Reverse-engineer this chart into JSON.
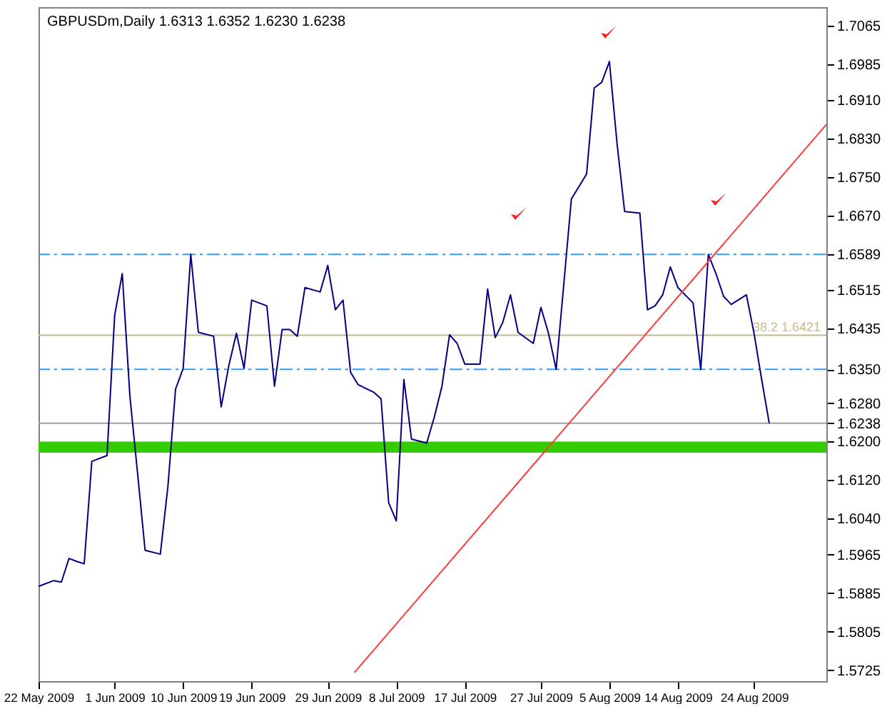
{
  "chart_data": {
    "type": "line",
    "title": "GBPUSDm,Daily  1.6313 1.6352 1.6230 1.6238",
    "xlim": [
      "2009-05-22",
      "2009-09-02T12:00"
    ],
    "ylim": [
      1.5702,
      1.7103
    ],
    "xticks": [
      {
        "value": "2009-05-22",
        "label": "22 May 2009"
      },
      {
        "value": "2009-06-01",
        "label": "1 Jun 2009"
      },
      {
        "value": "2009-06-10",
        "label": "10 Jun 2009"
      },
      {
        "value": "2009-06-19",
        "label": "19 Jun 2009"
      },
      {
        "value": "2009-06-29",
        "label": "29 Jun 2009"
      },
      {
        "value": "2009-07-08",
        "label": "8 Jul 2009"
      },
      {
        "value": "2009-07-17",
        "label": "17 Jul 2009"
      },
      {
        "value": "2009-07-27",
        "label": "27 Jul 2009"
      },
      {
        "value": "2009-08-05",
        "label": "5 Aug 2009"
      },
      {
        "value": "2009-08-14",
        "label": "14 Aug 2009"
      },
      {
        "value": "2009-08-24",
        "label": "24 Aug 2009"
      }
    ],
    "yticks": [
      1.7065,
      1.6985,
      {
        "value": 1.691,
        "label": "1.6910"
      },
      {
        "value": 1.683,
        "label": "1.6830"
      },
      {
        "value": 1.675,
        "label": "1.6750"
      },
      {
        "value": 1.667,
        "label": "1.6670"
      },
      1.6589,
      1.6515,
      1.6435,
      {
        "value": 1.635,
        "label": "1.6350"
      },
      {
        "value": 1.628,
        "label": "1.6280"
      },
      1.6238,
      {
        "value": 1.62,
        "label": "1.6200"
      },
      {
        "value": 1.612,
        "label": "1.6120"
      },
      {
        "value": 1.604,
        "label": "1.6040"
      },
      1.5965,
      1.5885,
      1.5805,
      1.5725
    ],
    "bands": [
      {
        "axis": "y",
        "from": 1.6177,
        "to": 1.62,
        "color": "#33cc00"
      }
    ],
    "ref_lines": [
      {
        "axis": "y",
        "value": 1.6589,
        "color": "#3399ff",
        "line_style": "dashed"
      },
      {
        "axis": "y",
        "value": 1.635,
        "color": "#3399ff",
        "line_style": "dashed"
      },
      {
        "axis": "y",
        "value": 1.6421,
        "label": "38.2  1.6421",
        "color": "#c8b98a",
        "line_style": "solid"
      },
      {
        "axis": "y",
        "value": 1.6238,
        "color": "#a0a0a0",
        "line_style": "solid"
      }
    ],
    "series": [
      {
        "color": "#000080",
        "x": [
          "2009-05-22",
          "2009-05-24",
          "2009-05-25",
          "2009-05-26",
          "2009-05-27",
          "2009-05-28",
          "2009-05-29",
          "2009-05-31",
          "2009-06-01",
          "2009-06-02",
          "2009-06-03",
          "2009-06-04",
          "2009-06-05",
          "2009-06-07",
          "2009-06-08",
          "2009-06-09",
          "2009-06-10",
          "2009-06-11",
          "2009-06-12",
          "2009-06-14",
          "2009-06-15",
          "2009-06-16",
          "2009-06-17",
          "2009-06-18",
          "2009-06-19",
          "2009-06-21",
          "2009-06-22",
          "2009-06-23",
          "2009-06-24",
          "2009-06-25",
          "2009-06-26",
          "2009-06-28",
          "2009-06-29",
          "2009-06-30",
          "2009-07-01",
          "2009-07-02",
          "2009-07-03",
          "2009-07-05",
          "2009-07-06",
          "2009-07-07",
          "2009-07-08",
          "2009-07-09",
          "2009-07-10",
          "2009-07-12",
          "2009-07-13",
          "2009-07-14",
          "2009-07-15",
          "2009-07-16",
          "2009-07-17",
          "2009-07-19",
          "2009-07-20",
          "2009-07-21",
          "2009-07-22",
          "2009-07-23",
          "2009-07-24",
          "2009-07-26",
          "2009-07-27",
          "2009-07-28",
          "2009-07-29",
          "2009-07-30",
          "2009-07-31",
          "2009-08-02",
          "2009-08-03",
          "2009-08-04",
          "2009-08-05",
          "2009-08-06",
          "2009-08-07",
          "2009-08-09",
          "2009-08-10",
          "2009-08-11",
          "2009-08-12",
          "2009-08-13",
          "2009-08-14",
          "2009-08-16",
          "2009-08-17",
          "2009-08-18",
          "2009-08-19",
          "2009-08-20",
          "2009-08-21",
          "2009-08-23",
          "2009-08-24",
          "2009-08-25",
          "2009-08-26"
        ],
        "values": [
          1.5899,
          1.5911,
          1.5908,
          1.5957,
          1.5951,
          1.5946,
          1.6159,
          1.6171,
          1.6462,
          1.6549,
          1.6295,
          1.6136,
          1.5974,
          1.5966,
          1.6107,
          1.6309,
          1.6352,
          1.6589,
          1.6427,
          1.6419,
          1.6272,
          1.6358,
          1.6425,
          1.6352,
          1.6494,
          1.6482,
          1.6315,
          1.6433,
          1.6433,
          1.6419,
          1.652,
          1.6511,
          1.6566,
          1.6474,
          1.6494,
          1.6344,
          1.6318,
          1.6303,
          1.6289,
          1.6073,
          1.6035,
          1.6329,
          1.6205,
          1.6197,
          1.6251,
          1.6315,
          1.6422,
          1.6404,
          1.6361,
          1.6361,
          1.6517,
          1.6416,
          1.6448,
          1.6505,
          1.6427,
          1.6404,
          1.6479,
          1.6425,
          1.635,
          1.6526,
          1.6704,
          1.6756,
          1.6935,
          1.6947,
          1.699,
          1.682,
          1.6678,
          1.6675,
          1.6474,
          1.6482,
          1.6505,
          1.6563,
          1.652,
          1.6488,
          1.635,
          1.6589,
          1.6549,
          1.6502,
          1.6485,
          1.6505,
          1.6425,
          1.6329,
          1.6238
        ]
      },
      {
        "color": "#ff3b3b",
        "x": [
          "2009-07-02T12:00",
          "2009-09-02T12:00"
        ],
        "values": [
          1.572,
          1.6859
        ]
      }
    ]
  }
}
